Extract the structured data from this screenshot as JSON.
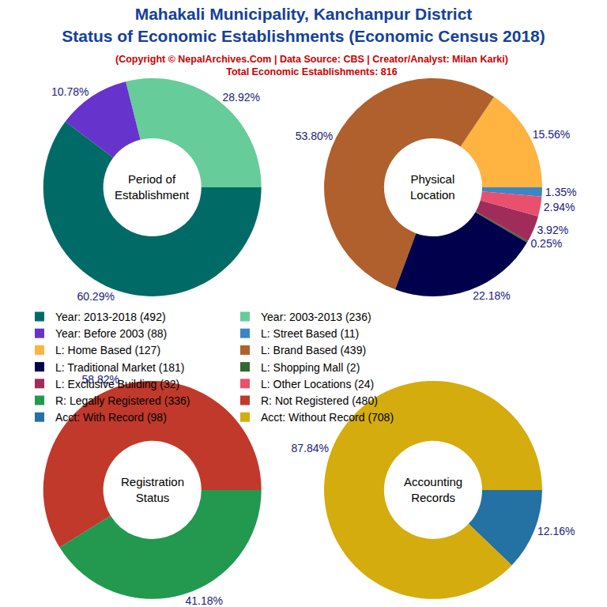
{
  "chart_data": [
    {
      "type": "pie",
      "title": [
        "Mahakali Municipality, Kanchanpur District",
        "Status of Economic Establishments (Economic Census 2018)"
      ],
      "subtitle": [
        "(Copyright © NepalArchives.Com | Data Source: CBS | Creator/Analyst: Milan Karki)",
        "Total Economic Establishments: 816"
      ],
      "annotations": [
        "Period of",
        "Establishment"
      ],
      "categories": [
        "Year: 2013-2018 (492)",
        "Year: 2003-2013 (236)",
        "Year: Before 2003 (88)"
      ],
      "values": [
        60.29,
        28.92,
        10.78
      ],
      "value_labels": [
        "60.29%",
        "28.92%",
        "10.78%"
      ],
      "colors": [
        "#006b66",
        "#66cc99",
        "#6633cc"
      ],
      "data_labels": true
    },
    {
      "type": "pie",
      "annotations": [
        "Physical",
        "Location"
      ],
      "categories": [
        "L: Street Based (11)",
        "L: Home Based (127)",
        "L: Brand Based (439)",
        "L: Traditional Market (181)",
        "L: Shopping Mall (2)",
        "L: Exclusive Building (32)",
        "L: Other Locations (24)"
      ],
      "values": [
        1.35,
        15.56,
        53.8,
        22.18,
        0.25,
        3.92,
        2.94
      ],
      "value_labels": [
        "1.35%",
        "15.56%",
        "53.80%",
        "22.18%",
        "0.25%",
        "3.92%",
        "2.94%"
      ],
      "colors": [
        "#3b86c6",
        "#ffb340",
        "#b0602c",
        "#00004d",
        "#336633",
        "#a02c5a",
        "#e8506e"
      ],
      "data_labels": true
    },
    {
      "type": "pie",
      "annotations": [
        "Registration",
        "Status"
      ],
      "categories": [
        "R: Legally Registered (336)",
        "R: Not Registered (480)"
      ],
      "values": [
        41.18,
        58.82
      ],
      "value_labels": [
        "41.18%",
        "58.82%"
      ],
      "colors": [
        "#22994f",
        "#c0392b"
      ],
      "data_labels": true
    },
    {
      "type": "pie",
      "annotations": [
        "Accounting",
        "Records"
      ],
      "categories": [
        "Acct: With Record (98)",
        "Acct: Without Record (708)"
      ],
      "values": [
        12.16,
        87.84
      ],
      "value_labels": [
        "12.16%",
        "87.84%"
      ],
      "colors": [
        "#2471a3",
        "#d4ac0d"
      ],
      "data_labels": true
    }
  ]
}
